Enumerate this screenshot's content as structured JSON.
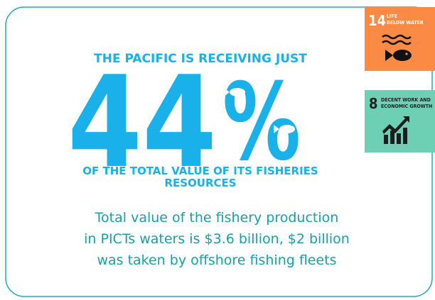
{
  "headline": {
    "top": "THE PACIFIC IS RECEIVING JUST",
    "figure": "44",
    "unit": "%",
    "bottom_lines": [
      "OF THE TOTAL VALUE OF ITS FISHERIES",
      "RESOURCES"
    ]
  },
  "description_lines": [
    "Total value of the fishery production",
    "in PICTs waters is $3.6 billion, $2 billion",
    "was taken by offshore fishing fleets"
  ],
  "badges": [
    {
      "number": "14",
      "label_lines": [
        "LIFE",
        "BELOW WATER"
      ]
    },
    {
      "number": "8",
      "label_lines": [
        "DECENT WORK AND",
        "ECONOMIC GROWTH"
      ]
    }
  ]
}
